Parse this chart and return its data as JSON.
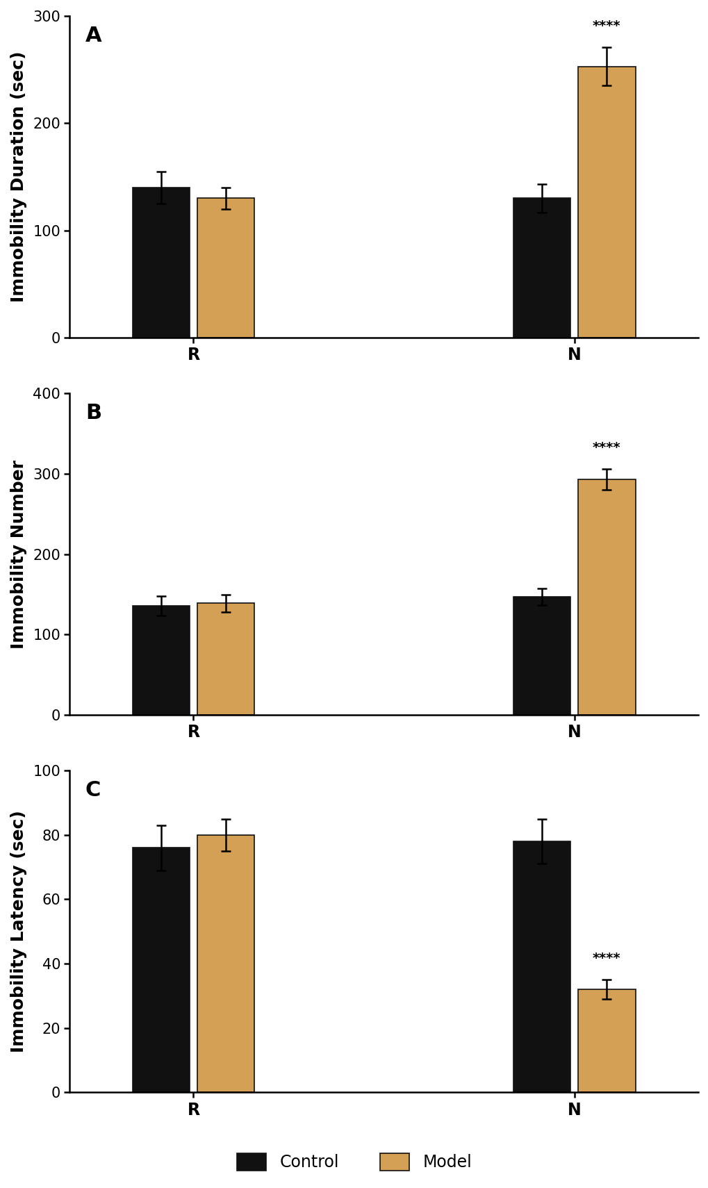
{
  "panels": [
    {
      "label": "A",
      "ylabel": "Immobility Duration (sec)",
      "ylim": [
        0,
        300
      ],
      "yticks": [
        0,
        100,
        200,
        300
      ],
      "groups": [
        "R",
        "N"
      ],
      "control_vals": [
        140,
        130
      ],
      "model_vals": [
        130,
        253
      ],
      "control_errs": [
        15,
        13
      ],
      "model_errs": [
        10,
        18
      ],
      "sig_idx": [
        1
      ],
      "sig_labels": [
        "****"
      ]
    },
    {
      "label": "B",
      "ylabel": "Immobility Number",
      "ylim": [
        0,
        400
      ],
      "yticks": [
        0,
        100,
        200,
        300,
        400
      ],
      "groups": [
        "R",
        "N"
      ],
      "control_vals": [
        136,
        147
      ],
      "model_vals": [
        139,
        293
      ],
      "control_errs": [
        12,
        10
      ],
      "model_errs": [
        11,
        13
      ],
      "sig_idx": [
        1
      ],
      "sig_labels": [
        "****"
      ]
    },
    {
      "label": "C",
      "ylabel": "Immobility Latency (sec)",
      "ylim": [
        0,
        100
      ],
      "yticks": [
        0,
        20,
        40,
        60,
        80,
        100
      ],
      "groups": [
        "R",
        "N"
      ],
      "control_vals": [
        76,
        78
      ],
      "model_vals": [
        80,
        32
      ],
      "control_errs": [
        7,
        7
      ],
      "model_errs": [
        5,
        3
      ],
      "sig_idx": [
        1
      ],
      "sig_labels": [
        "****"
      ]
    }
  ],
  "control_color": "#111111",
  "model_color": "#D4A055",
  "bar_width": 0.3,
  "edge_color": "#111111",
  "legend_labels": [
    "Control",
    "Model"
  ],
  "sig_fontsize": 14,
  "ylabel_fontsize": 18,
  "tick_fontsize": 15,
  "group_label_fontsize": 17,
  "panel_label_fontsize": 22
}
